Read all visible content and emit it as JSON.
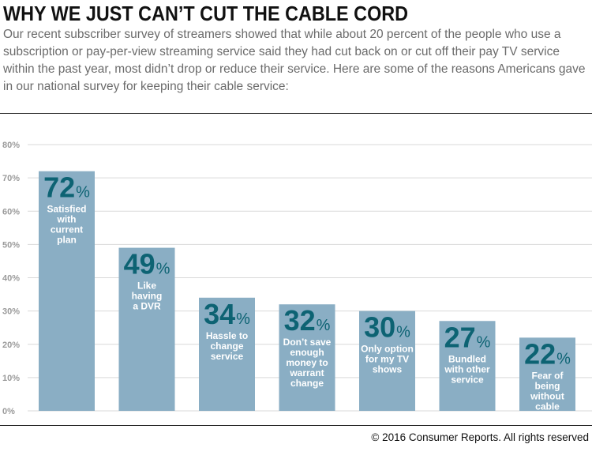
{
  "header": {
    "title": "WHY WE JUST CAN’T CUT THE CABLE CORD",
    "intro": "Our recent subscriber survey of streamers showed that while about 20 percent of the people who use a subscription or pay-per-view streaming service said they had cut back on or cut off their pay TV service within the past year, most didn’t drop or reduce their service. Here are some of the reasons Americans gave in our national survey for keeping their cable service:"
  },
  "chart_data": {
    "type": "bar",
    "categories": [
      "Satisfied with current plan",
      "Like having a DVR",
      "Hassle to change service",
      "Don’t save enough money to warrant change",
      "Only option for my TV shows",
      "Bundled with other service",
      "Fear of being without cable"
    ],
    "category_lines": [
      [
        "Satisfied",
        "with",
        "current",
        "plan"
      ],
      [
        "Like",
        "having",
        "a DVR"
      ],
      [
        "Hassle to",
        "change",
        "service"
      ],
      [
        "Don’t save",
        "enough",
        "money to",
        "warrant",
        "change"
      ],
      [
        "Only option",
        "for my TV",
        "shows"
      ],
      [
        "Bundled",
        "with other",
        "service"
      ],
      [
        "Fear of",
        "being",
        "without",
        "cable"
      ]
    ],
    "values": [
      72,
      49,
      34,
      32,
      30,
      27,
      22
    ],
    "value_suffix": "%",
    "ylim": [
      0,
      80
    ],
    "yticks": [
      0,
      10,
      20,
      30,
      40,
      50,
      60,
      70,
      80
    ],
    "ytick_labels": [
      "0%",
      "10%",
      "20%",
      "30%",
      "40%",
      "50%",
      "60%",
      "70%",
      "80%"
    ],
    "grid": true,
    "colors": {
      "bar": "#8aaec4",
      "value": "#0d6373",
      "label": "#ffffff",
      "grid": "#d9d9d9",
      "axis_text": "#9a9a9a"
    }
  },
  "footer": {
    "copyright": "© 2016 Consumer Reports. All rights reserved"
  }
}
